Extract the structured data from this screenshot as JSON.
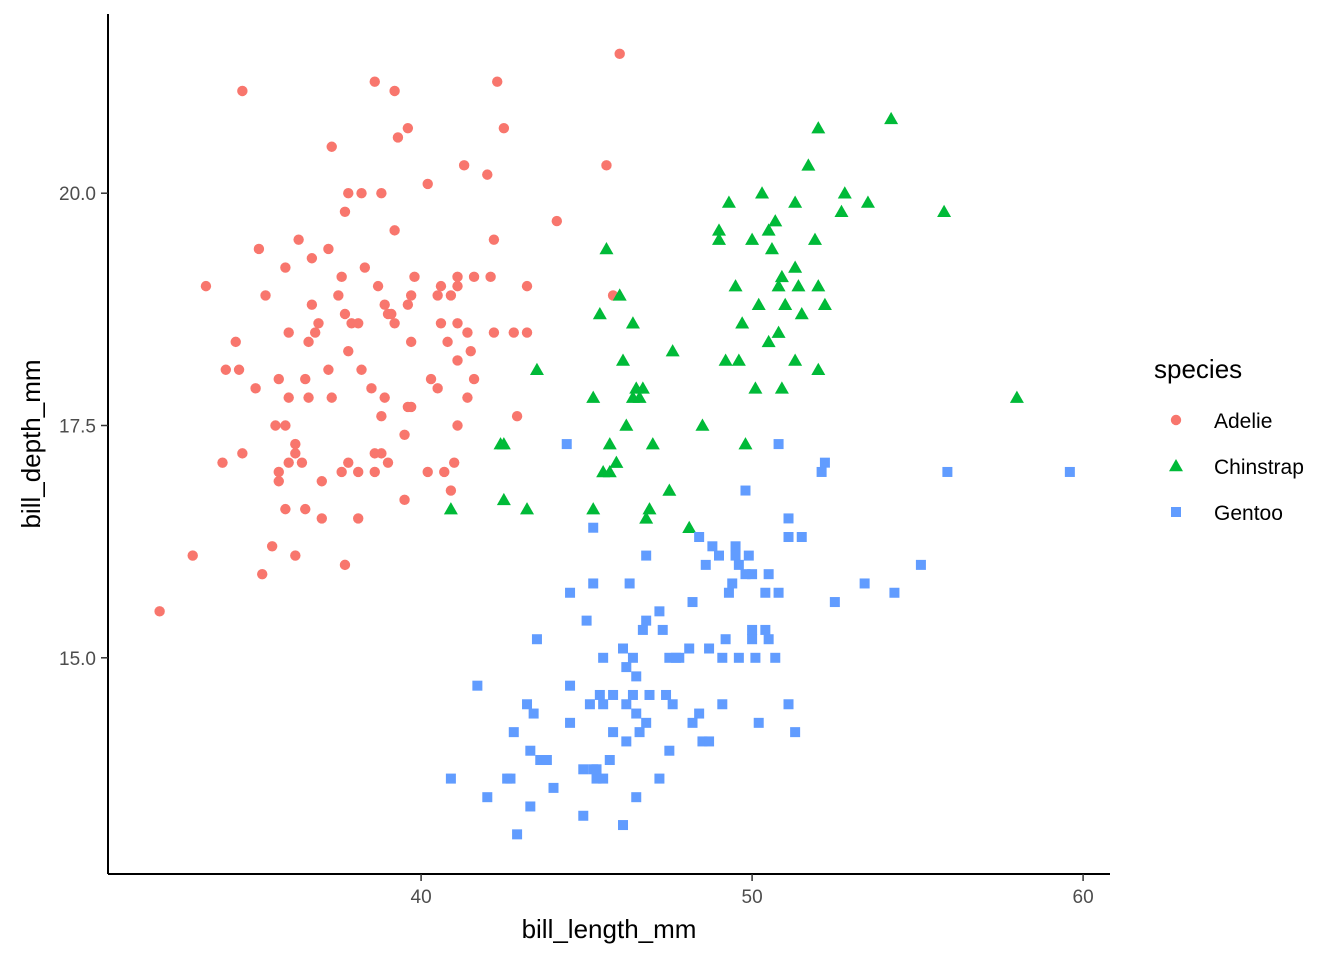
{
  "chart_data": {
    "type": "scatter",
    "title": "",
    "xlabel": "bill_length_mm",
    "ylabel": "bill_depth_mm",
    "xlim": [
      31.0,
      61.0
    ],
    "ylim": [
      12.5,
      22.0
    ],
    "x_ticks": [
      40,
      50,
      60
    ],
    "y_ticks": [
      15.0,
      17.5,
      20.0
    ],
    "x_tick_labels": [
      "40",
      "50",
      "60"
    ],
    "y_tick_labels": [
      "15.0",
      "17.5",
      "20.0"
    ],
    "grid": false,
    "legend": {
      "title": "species",
      "position": "right"
    },
    "series": [
      {
        "name": "Adelie",
        "shape": "circle",
        "color": "#F8766D",
        "points": [
          [
            32.1,
            15.5
          ],
          [
            33.1,
            16.1
          ],
          [
            33.5,
            19.0
          ],
          [
            34.0,
            17.1
          ],
          [
            34.1,
            18.1
          ],
          [
            34.4,
            18.4
          ],
          [
            34.5,
            18.1
          ],
          [
            34.6,
            21.1
          ],
          [
            34.6,
            17.2
          ],
          [
            35.0,
            17.9
          ],
          [
            35.1,
            19.4
          ],
          [
            35.2,
            15.9
          ],
          [
            35.3,
            18.9
          ],
          [
            35.5,
            16.2
          ],
          [
            35.6,
            17.5
          ],
          [
            35.7,
            17.0
          ],
          [
            35.7,
            16.9
          ],
          [
            35.7,
            18.0
          ],
          [
            35.9,
            17.5
          ],
          [
            35.9,
            16.6
          ],
          [
            35.9,
            19.2
          ],
          [
            36.0,
            18.5
          ],
          [
            36.0,
            17.1
          ],
          [
            36.0,
            17.8
          ],
          [
            36.2,
            16.1
          ],
          [
            36.2,
            17.3
          ],
          [
            36.2,
            17.2
          ],
          [
            36.3,
            19.5
          ],
          [
            36.4,
            17.1
          ],
          [
            36.5,
            16.6
          ],
          [
            36.5,
            18.0
          ],
          [
            36.6,
            17.8
          ],
          [
            36.6,
            18.4
          ],
          [
            36.7,
            18.8
          ],
          [
            36.7,
            19.3
          ],
          [
            36.8,
            18.5
          ],
          [
            36.9,
            18.6
          ],
          [
            37.0,
            16.9
          ],
          [
            37.0,
            16.5
          ],
          [
            37.2,
            18.1
          ],
          [
            37.2,
            19.4
          ],
          [
            37.3,
            17.8
          ],
          [
            37.3,
            20.5
          ],
          [
            37.5,
            18.9
          ],
          [
            37.6,
            19.1
          ],
          [
            37.6,
            17.0
          ],
          [
            37.7,
            18.7
          ],
          [
            37.7,
            16.0
          ],
          [
            37.7,
            19.8
          ],
          [
            37.8,
            17.1
          ],
          [
            37.8,
            18.3
          ],
          [
            37.8,
            20.0
          ],
          [
            37.9,
            18.6
          ],
          [
            38.1,
            18.6
          ],
          [
            38.1,
            17.0
          ],
          [
            38.1,
            16.5
          ],
          [
            38.2,
            18.1
          ],
          [
            38.2,
            20.0
          ],
          [
            38.3,
            19.2
          ],
          [
            38.5,
            17.9
          ],
          [
            38.6,
            21.2
          ],
          [
            38.6,
            17.2
          ],
          [
            38.6,
            17.0
          ],
          [
            38.7,
            19.0
          ],
          [
            38.8,
            17.2
          ],
          [
            38.8,
            20.0
          ],
          [
            38.8,
            17.6
          ],
          [
            38.9,
            17.8
          ],
          [
            38.9,
            18.8
          ],
          [
            39.0,
            17.1
          ],
          [
            39.0,
            18.7
          ],
          [
            39.1,
            18.7
          ],
          [
            39.2,
            19.6
          ],
          [
            39.2,
            21.1
          ],
          [
            39.2,
            18.6
          ],
          [
            39.3,
            20.6
          ],
          [
            39.5,
            17.4
          ],
          [
            39.5,
            16.7
          ],
          [
            39.6,
            17.7
          ],
          [
            39.6,
            18.8
          ],
          [
            39.6,
            20.7
          ],
          [
            39.7,
            18.4
          ],
          [
            39.7,
            18.9
          ],
          [
            39.7,
            17.7
          ],
          [
            39.8,
            19.1
          ],
          [
            40.2,
            17.0
          ],
          [
            40.2,
            20.1
          ],
          [
            40.3,
            18.0
          ],
          [
            40.5,
            18.9
          ],
          [
            40.5,
            17.9
          ],
          [
            40.6,
            18.6
          ],
          [
            40.6,
            19.0
          ],
          [
            40.7,
            17.0
          ],
          [
            40.8,
            18.4
          ],
          [
            40.9,
            18.9
          ],
          [
            40.9,
            16.8
          ],
          [
            41.0,
            17.1
          ],
          [
            41.1,
            18.6
          ],
          [
            41.1,
            19.0
          ],
          [
            41.1,
            17.5
          ],
          [
            41.1,
            18.2
          ],
          [
            41.1,
            19.1
          ],
          [
            41.3,
            20.3
          ],
          [
            41.4,
            18.5
          ],
          [
            41.5,
            18.3
          ],
          [
            41.6,
            18.0
          ],
          [
            41.6,
            19.1
          ],
          [
            42.0,
            20.2
          ],
          [
            42.1,
            19.1
          ],
          [
            42.2,
            18.5
          ],
          [
            42.2,
            19.5
          ],
          [
            42.3,
            21.2
          ],
          [
            42.5,
            20.7
          ],
          [
            42.8,
            18.5
          ],
          [
            42.9,
            17.6
          ],
          [
            43.2,
            19.0
          ],
          [
            43.2,
            18.5
          ],
          [
            44.1,
            19.7
          ],
          [
            45.6,
            20.3
          ],
          [
            45.8,
            18.9
          ],
          [
            46.0,
            21.5
          ],
          [
            41.4,
            17.8
          ]
        ]
      },
      {
        "name": "Chinstrap",
        "shape": "triangle",
        "color": "#00BA38",
        "points": [
          [
            40.9,
            16.6
          ],
          [
            42.4,
            17.3
          ],
          [
            42.5,
            16.7
          ],
          [
            42.5,
            17.3
          ],
          [
            43.2,
            16.6
          ],
          [
            43.5,
            18.1
          ],
          [
            45.2,
            17.8
          ],
          [
            45.2,
            16.6
          ],
          [
            45.4,
            18.7
          ],
          [
            45.5,
            17.0
          ],
          [
            45.6,
            19.4
          ],
          [
            45.7,
            17.3
          ],
          [
            45.7,
            17.0
          ],
          [
            45.9,
            17.1
          ],
          [
            46.0,
            18.9
          ],
          [
            46.1,
            18.2
          ],
          [
            46.2,
            17.5
          ],
          [
            46.4,
            18.6
          ],
          [
            46.4,
            17.8
          ],
          [
            46.5,
            17.9
          ],
          [
            46.6,
            17.8
          ],
          [
            46.7,
            17.9
          ],
          [
            46.8,
            16.5
          ],
          [
            46.9,
            16.6
          ],
          [
            47.0,
            17.3
          ],
          [
            47.5,
            16.8
          ],
          [
            47.6,
            18.3
          ],
          [
            48.1,
            16.4
          ],
          [
            48.5,
            17.5
          ],
          [
            49.0,
            19.5
          ],
          [
            49.0,
            19.6
          ],
          [
            49.2,
            18.2
          ],
          [
            49.3,
            19.9
          ],
          [
            49.5,
            19.0
          ],
          [
            49.6,
            18.2
          ],
          [
            49.7,
            18.6
          ],
          [
            49.8,
            17.3
          ],
          [
            50.0,
            19.5
          ],
          [
            50.1,
            17.9
          ],
          [
            50.2,
            18.8
          ],
          [
            50.3,
            20.0
          ],
          [
            50.5,
            18.4
          ],
          [
            50.5,
            19.6
          ],
          [
            50.6,
            19.4
          ],
          [
            50.7,
            19.7
          ],
          [
            50.8,
            18.5
          ],
          [
            50.8,
            19.0
          ],
          [
            50.9,
            19.1
          ],
          [
            50.9,
            17.9
          ],
          [
            51.0,
            18.8
          ],
          [
            51.3,
            18.2
          ],
          [
            51.3,
            19.2
          ],
          [
            51.3,
            19.9
          ],
          [
            51.4,
            19.0
          ],
          [
            51.5,
            18.7
          ],
          [
            51.9,
            19.5
          ],
          [
            52.0,
            18.1
          ],
          [
            52.0,
            19.0
          ],
          [
            52.0,
            20.7
          ],
          [
            52.2,
            18.8
          ],
          [
            52.7,
            19.8
          ],
          [
            52.8,
            20.0
          ],
          [
            53.5,
            19.9
          ],
          [
            54.2,
            20.8
          ],
          [
            55.8,
            19.8
          ],
          [
            58.0,
            17.8
          ],
          [
            51.7,
            20.3
          ]
        ]
      },
      {
        "name": "Gentoo",
        "shape": "square",
        "color": "#619CFF",
        "points": [
          [
            40.9,
            13.7
          ],
          [
            41.7,
            14.7
          ],
          [
            42.0,
            13.5
          ],
          [
            42.7,
            13.7
          ],
          [
            42.8,
            14.2
          ],
          [
            42.9,
            13.1
          ],
          [
            42.6,
            13.7
          ],
          [
            43.2,
            14.5
          ],
          [
            43.3,
            14.0
          ],
          [
            43.3,
            13.4
          ],
          [
            43.4,
            14.4
          ],
          [
            43.5,
            15.2
          ],
          [
            43.6,
            13.9
          ],
          [
            43.8,
            13.9
          ],
          [
            44.0,
            13.6
          ],
          [
            44.4,
            17.3
          ],
          [
            44.5,
            15.7
          ],
          [
            44.5,
            14.3
          ],
          [
            44.5,
            14.7
          ],
          [
            44.9,
            13.8
          ],
          [
            44.9,
            13.3
          ],
          [
            45.0,
            15.4
          ],
          [
            45.1,
            14.5
          ],
          [
            45.2,
            13.8
          ],
          [
            45.2,
            16.4
          ],
          [
            45.2,
            15.8
          ],
          [
            45.3,
            13.7
          ],
          [
            45.3,
            13.8
          ],
          [
            45.4,
            14.6
          ],
          [
            45.5,
            13.7
          ],
          [
            45.5,
            15.0
          ],
          [
            45.5,
            14.5
          ],
          [
            45.7,
            13.9
          ],
          [
            45.8,
            14.2
          ],
          [
            45.8,
            14.6
          ],
          [
            46.1,
            13.2
          ],
          [
            46.1,
            15.1
          ],
          [
            46.2,
            14.5
          ],
          [
            46.2,
            14.9
          ],
          [
            46.2,
            14.1
          ],
          [
            46.3,
            15.8
          ],
          [
            46.4,
            14.6
          ],
          [
            46.4,
            15.0
          ],
          [
            46.5,
            13.5
          ],
          [
            46.5,
            14.4
          ],
          [
            46.5,
            14.8
          ],
          [
            46.6,
            14.2
          ],
          [
            46.7,
            15.3
          ],
          [
            46.8,
            14.3
          ],
          [
            46.8,
            15.4
          ],
          [
            46.8,
            16.1
          ],
          [
            46.9,
            14.6
          ],
          [
            47.2,
            13.7
          ],
          [
            47.2,
            15.5
          ],
          [
            47.3,
            15.3
          ],
          [
            47.4,
            14.6
          ],
          [
            47.5,
            14.0
          ],
          [
            47.5,
            15.0
          ],
          [
            47.6,
            14.5
          ],
          [
            47.7,
            15.0
          ],
          [
            47.8,
            15.0
          ],
          [
            48.1,
            15.1
          ],
          [
            48.2,
            14.3
          ],
          [
            48.2,
            15.6
          ],
          [
            48.4,
            14.4
          ],
          [
            48.4,
            16.3
          ],
          [
            48.5,
            14.1
          ],
          [
            48.6,
            16.0
          ],
          [
            48.7,
            14.1
          ],
          [
            48.7,
            15.1
          ],
          [
            48.8,
            16.2
          ],
          [
            49.0,
            16.1
          ],
          [
            49.1,
            14.5
          ],
          [
            49.1,
            15.0
          ],
          [
            49.2,
            15.2
          ],
          [
            49.3,
            15.7
          ],
          [
            49.4,
            15.8
          ],
          [
            49.5,
            16.2
          ],
          [
            49.5,
            16.1
          ],
          [
            49.6,
            15.0
          ],
          [
            49.6,
            16.0
          ],
          [
            49.8,
            15.9
          ],
          [
            49.8,
            16.8
          ],
          [
            49.9,
            16.1
          ],
          [
            50.0,
            15.2
          ],
          [
            50.0,
            15.3
          ],
          [
            50.0,
            15.9
          ],
          [
            50.1,
            15.0
          ],
          [
            50.2,
            14.3
          ],
          [
            50.4,
            15.3
          ],
          [
            50.4,
            15.7
          ],
          [
            50.5,
            15.9
          ],
          [
            50.5,
            15.2
          ],
          [
            50.7,
            15.0
          ],
          [
            50.8,
            15.7
          ],
          [
            50.8,
            17.3
          ],
          [
            51.1,
            14.5
          ],
          [
            51.1,
            16.3
          ],
          [
            51.1,
            16.5
          ],
          [
            51.3,
            14.2
          ],
          [
            51.5,
            16.3
          ],
          [
            52.1,
            17.0
          ],
          [
            52.2,
            17.1
          ],
          [
            52.5,
            15.6
          ],
          [
            53.4,
            15.8
          ],
          [
            54.3,
            15.7
          ],
          [
            55.1,
            16.0
          ],
          [
            55.9,
            17.0
          ],
          [
            59.6,
            17.0
          ]
        ]
      }
    ]
  }
}
